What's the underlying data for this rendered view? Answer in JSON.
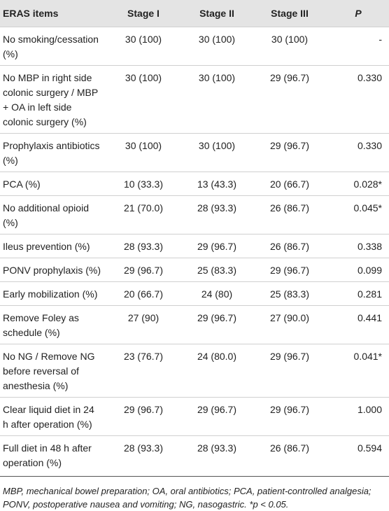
{
  "table": {
    "header": [
      "ERAS items",
      "Stage I",
      "Stage II",
      "Stage III",
      "P"
    ],
    "rows": [
      [
        "No smoking/cessation (%)",
        "30 (100)",
        "30 (100)",
        "30 (100)",
        "-"
      ],
      [
        "No MBP in right side colonic surgery / MBP + OA in left side colonic surgery (%)",
        "30 (100)",
        "30 (100)",
        "29 (96.7)",
        "0.330"
      ],
      [
        "Prophylaxis antibiotics (%)",
        "30 (100)",
        "30 (100)",
        "29 (96.7)",
        "0.330"
      ],
      [
        "PCA (%)",
        "10 (33.3)",
        "13 (43.3)",
        "20 (66.7)",
        "0.028*"
      ],
      [
        "No additional opioid (%)",
        "21 (70.0)",
        "28 (93.3)",
        "26 (86.7)",
        "0.045*"
      ],
      [
        "Ileus prevention (%)",
        "28 (93.3)",
        "29 (96.7)",
        "26 (86.7)",
        "0.338"
      ],
      [
        "PONV prophylaxis (%)",
        "29 (96.7)",
        "25 (83.3)",
        "29 (96.7)",
        "0.099"
      ],
      [
        "Early mobilization (%)",
        "20 (66.7)",
        "24 (80)",
        "25 (83.3)",
        "0.281"
      ],
      [
        "Remove Foley as schedule (%)",
        "27 (90)",
        "29 (96.7)",
        "27 (90.0)",
        "0.441"
      ],
      [
        "No NG / Remove NG before reversal of anesthesia (%)",
        "23 (76.7)",
        "24 (80.0)",
        "29 (96.7)",
        "0.041*"
      ],
      [
        "Clear liquid diet in 24 h after operation (%)",
        "29 (96.7)",
        "29 (96.7)",
        "29 (96.7)",
        "1.000"
      ],
      [
        "Full diet in 48 h after operation (%)",
        "28 (93.3)",
        "28 (93.3)",
        "26 (86.7)",
        "0.594"
      ]
    ]
  },
  "footnote": "MBP, mechanical bowel preparation; OA, oral antibiotics; PCA, patient-controlled analgesia; PONV, postoperative nausea and vomiting; NG, nasogastric. *p < 0.05."
}
